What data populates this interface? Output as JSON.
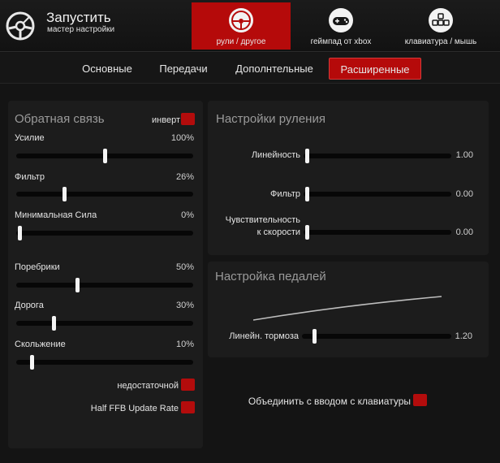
{
  "header": {
    "title": "Запустить",
    "subtitle": "мастер настройки",
    "devices": [
      {
        "label": "рули / другое",
        "icon": "steering-wheel-icon",
        "active": true
      },
      {
        "label": "геймпад от xbox",
        "icon": "gamepad-icon",
        "active": false
      },
      {
        "label": "клавиатура / мышь",
        "icon": "keyboard-icon",
        "active": false
      }
    ]
  },
  "tabs": [
    {
      "label": "Основные",
      "active": false
    },
    {
      "label": "Передачи",
      "active": false
    },
    {
      "label": "Дополнтельные",
      "active": false
    },
    {
      "label": "Расширенные",
      "active": true
    }
  ],
  "feedback": {
    "title": "Обратная связь",
    "invert_label": "инверт",
    "sliders": [
      {
        "label": "Усилие",
        "value": "100%",
        "level": 0.5
      },
      {
        "label": "Фильтр",
        "value": "26%",
        "level": 0.26
      },
      {
        "label": "Минимальная Сила",
        "value": "0%",
        "level": 0.0
      },
      {
        "label": "Поребрики",
        "value": "50%",
        "level": 0.34
      },
      {
        "label": "Дорога",
        "value": "30%",
        "level": 0.2
      },
      {
        "label": "Скольжение",
        "value": "10%",
        "level": 0.07
      }
    ],
    "checks": [
      {
        "label": "недостаточной"
      },
      {
        "label": "Half FFB Update Rate"
      }
    ]
  },
  "steering": {
    "title": "Настройки руления",
    "sliders": [
      {
        "label": "Линейность",
        "label2": "",
        "value": "1.00",
        "level": 0.0
      },
      {
        "label": "Фильтр",
        "label2": "",
        "value": "0.00",
        "level": 0.0
      },
      {
        "label": "Чувствительность",
        "label2": "к скорости",
        "value": "0.00",
        "level": 0.0
      }
    ]
  },
  "pedals": {
    "title": "Настройка педалей",
    "slider": {
      "label": "Линейн. тормоза",
      "value": "1.20",
      "level": 0.06
    }
  },
  "keyboard_combine": {
    "label": "Объединить с вводом с клавиатуры"
  },
  "colors": {
    "accent": "#b50a0a",
    "panel": "#1c1c1c",
    "background": "#141414"
  }
}
